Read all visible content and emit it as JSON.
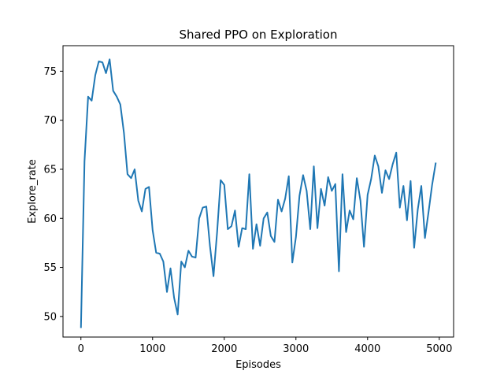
{
  "chart_data": {
    "type": "line",
    "title": "Shared PPO  on Exploration",
    "xlabel": "Episodes",
    "ylabel": "Explore_rate",
    "xlim": [
      -250,
      5200
    ],
    "ylim": [
      47.9,
      77.6
    ],
    "grid": false,
    "x_ticks": [
      0,
      1000,
      2000,
      3000,
      4000,
      5000
    ],
    "y_ticks": [
      50,
      55,
      60,
      65,
      70,
      75
    ],
    "color": "#1f77b4",
    "series": [
      {
        "x": [
          0,
          50,
          100,
          150,
          200,
          250,
          300,
          350,
          400,
          450,
          500,
          550,
          600,
          650,
          700,
          750,
          800,
          850,
          900,
          950,
          1000,
          1050,
          1100,
          1150,
          1200,
          1250,
          1300,
          1350,
          1400,
          1450,
          1500,
          1550,
          1600,
          1650,
          1700,
          1750,
          1800,
          1850,
          1900,
          1950,
          2000,
          2050,
          2100,
          2150,
          2200,
          2250,
          2300,
          2350,
          2400,
          2450,
          2500,
          2550,
          2600,
          2650,
          2700,
          2750,
          2800,
          2850,
          2900,
          2950,
          3000,
          3050,
          3100,
          3150,
          3200,
          3250,
          3300,
          3350,
          3400,
          3450,
          3500,
          3550,
          3600,
          3650,
          3700,
          3750,
          3800,
          3850,
          3900,
          3950,
          4000,
          4050,
          4100,
          4150,
          4200,
          4250,
          4300,
          4350,
          4400,
          4450,
          4500,
          4550,
          4600,
          4650,
          4700,
          4750,
          4800,
          4850,
          4900,
          4950
        ],
        "y": [
          48.9,
          65.8,
          72.4,
          72.0,
          74.6,
          76.0,
          75.9,
          74.8,
          76.2,
          73.0,
          72.4,
          71.6,
          68.7,
          64.5,
          64.1,
          65.0,
          61.8,
          60.7,
          63.0,
          63.2,
          58.8,
          56.5,
          56.4,
          55.6,
          52.5,
          54.9,
          51.9,
          50.2,
          55.6,
          55.0,
          56.7,
          56.1,
          56.0,
          60.0,
          61.1,
          61.2,
          57.2,
          54.1,
          58.6,
          63.9,
          63.4,
          58.9,
          59.2,
          60.8,
          57.1,
          59.0,
          58.9,
          64.5,
          56.9,
          59.4,
          57.2,
          60.0,
          60.6,
          58.2,
          57.6,
          61.9,
          60.7,
          62.0,
          64.3,
          55.5,
          58.1,
          62.3,
          64.4,
          62.8,
          58.9,
          65.3,
          59.0,
          63.0,
          61.3,
          64.2,
          62.8,
          63.5,
          54.6,
          64.5,
          58.6,
          60.8,
          59.9,
          64.1,
          61.8,
          57.1,
          62.4,
          64.0,
          66.4,
          65.3,
          62.6,
          64.9,
          64.0,
          65.5,
          66.7,
          61.1,
          63.3,
          59.8,
          63.8,
          57.0,
          60.9,
          63.3,
          58.0,
          60.6,
          63.4,
          65.6
        ]
      }
    ]
  }
}
